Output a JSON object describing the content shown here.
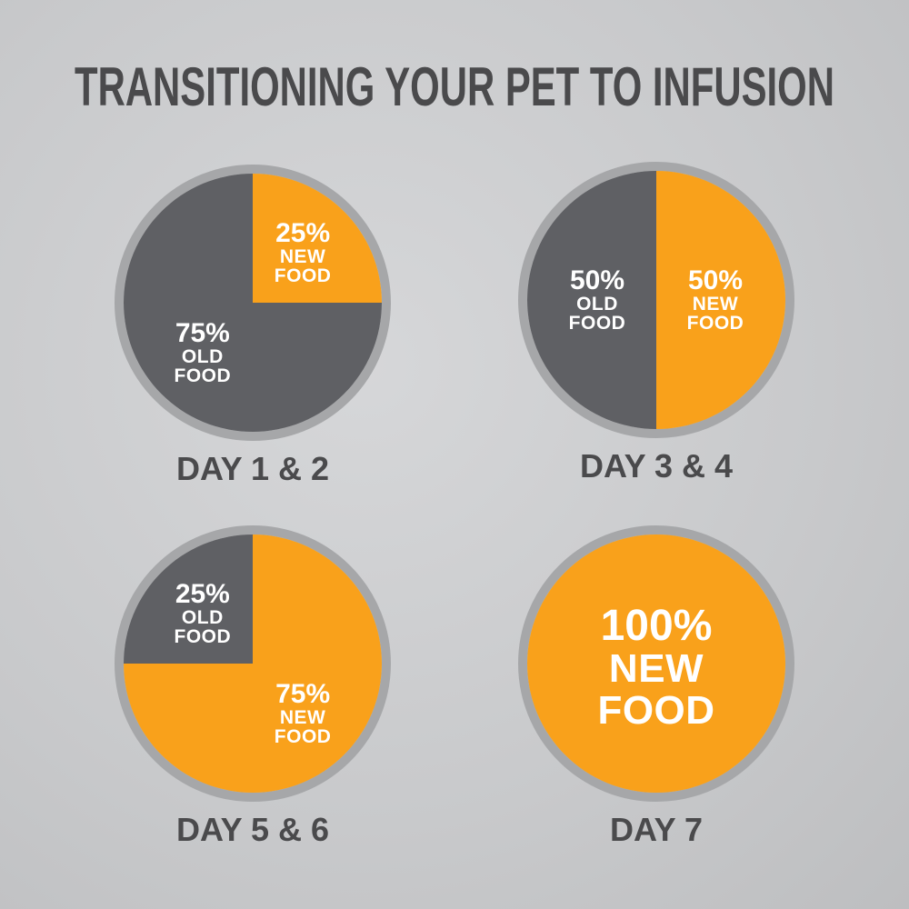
{
  "title": "TRANSITIONING YOUR PET TO INFUSION",
  "chart_data": [
    {
      "type": "pie",
      "title": "DAY 1 & 2",
      "categories": [
        "NEW FOOD",
        "OLD FOOD"
      ],
      "values": [
        25,
        75
      ],
      "value_labels": [
        "25%",
        "75%"
      ],
      "colors": [
        "#f9a11b",
        "#5f6064"
      ]
    },
    {
      "type": "pie",
      "title": "DAY 3 & 4",
      "categories": [
        "NEW FOOD",
        "OLD FOOD"
      ],
      "values": [
        50,
        50
      ],
      "value_labels": [
        "50%",
        "50%"
      ],
      "colors": [
        "#f9a11b",
        "#5f6064"
      ]
    },
    {
      "type": "pie",
      "title": "DAY 5 & 6",
      "categories": [
        "NEW FOOD",
        "OLD FOOD"
      ],
      "values": [
        75,
        25
      ],
      "value_labels": [
        "75%",
        "25%"
      ],
      "colors": [
        "#f9a11b",
        "#5f6064"
      ]
    },
    {
      "type": "pie",
      "title": "DAY 7",
      "categories": [
        "NEW FOOD"
      ],
      "values": [
        100
      ],
      "value_labels": [
        "100%"
      ],
      "colors": [
        "#f9a11b"
      ]
    }
  ]
}
